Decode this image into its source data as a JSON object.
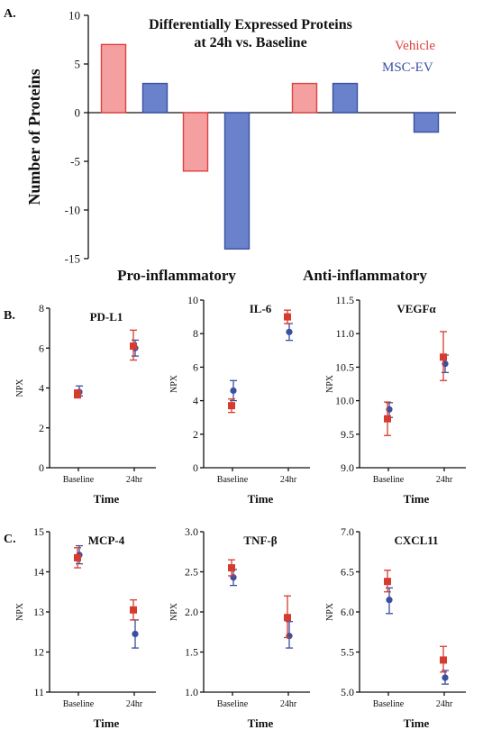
{
  "figure": {
    "panel_labels": [
      "A.",
      "B.",
      "C."
    ]
  },
  "chart_data": [
    {
      "type": "bar",
      "panel": "A.",
      "title": [
        "Differentially Expressed Proteins",
        "at 24h vs. Baseline"
      ],
      "ylabel": "Number of Proteins",
      "ylim": [
        -15,
        10
      ],
      "yticks": [
        10,
        5,
        0,
        -5,
        -10,
        -15
      ],
      "groups": [
        "Pro-inflammatory",
        "Anti-inflammatory"
      ],
      "legend_position": "top-right",
      "series": [
        {
          "name": "Vehicle",
          "color": "#e0403f",
          "fill": "#f4a0a0",
          "values": [
            7,
            -6,
            3
          ]
        },
        {
          "name": "MSC-EV",
          "color": "#3a4fa0",
          "fill": "#6a82cc",
          "values": [
            3,
            -14,
            3,
            -2
          ]
        }
      ],
      "bars": [
        {
          "group": "Pro-inflammatory",
          "series": "Vehicle",
          "value": 7
        },
        {
          "group": "Pro-inflammatory",
          "series": "MSC-EV",
          "value": 3
        },
        {
          "group": "Pro-inflammatory",
          "series": "Vehicle",
          "value": -6
        },
        {
          "group": "Pro-inflammatory",
          "series": "MSC-EV",
          "value": -14
        },
        {
          "group": "Anti-inflammatory",
          "series": "Vehicle",
          "value": 3
        },
        {
          "group": "Anti-inflammatory",
          "series": "MSC-EV",
          "value": 3
        },
        {
          "group": "Anti-inflammatory",
          "series": "MSC-EV",
          "value": -2
        }
      ]
    },
    {
      "type": "scatter",
      "panel": "B.",
      "title": "PD-L1",
      "xlabel": "Time",
      "ylabel": "NPX",
      "categories": [
        "Baseline",
        "24hr"
      ],
      "ylim": [
        0,
        8
      ],
      "yticks": [
        "0",
        "2",
        "4",
        "6",
        "8"
      ],
      "series": [
        {
          "name": "Vehicle",
          "color": "#d63b2f",
          "marker": "square",
          "values": [
            3.7,
            6.1
          ],
          "err_low": [
            3.5,
            5.4
          ],
          "err_high": [
            3.9,
            6.9
          ]
        },
        {
          "name": "MSC-EV",
          "color": "#3a4fa0",
          "marker": "circle",
          "values": [
            3.8,
            6.0
          ],
          "err_low": [
            3.6,
            5.6
          ],
          "err_high": [
            4.1,
            6.4
          ]
        }
      ]
    },
    {
      "type": "scatter",
      "panel": "B.",
      "title": "IL-6",
      "xlabel": "Time",
      "ylabel": "NPX",
      "categories": [
        "Baseline",
        "24hr"
      ],
      "ylim": [
        0,
        10
      ],
      "yticks": [
        "0",
        "2",
        "4",
        "6",
        "8",
        "10"
      ],
      "series": [
        {
          "name": "Vehicle",
          "color": "#d63b2f",
          "marker": "square",
          "values": [
            3.7,
            9.0
          ],
          "err_low": [
            3.3,
            8.6
          ],
          "err_high": [
            4.1,
            9.4
          ]
        },
        {
          "name": "MSC-EV",
          "color": "#3a4fa0",
          "marker": "circle",
          "values": [
            4.6,
            8.1
          ],
          "err_low": [
            4.0,
            7.6
          ],
          "err_high": [
            5.2,
            8.6
          ]
        }
      ]
    },
    {
      "type": "scatter",
      "panel": "B.",
      "title": "VEGFα",
      "xlabel": "Time",
      "ylabel": "NPX",
      "categories": [
        "Baseline",
        "24hr"
      ],
      "ylim": [
        9.0,
        11.5
      ],
      "yticks": [
        "9.0",
        "9.5",
        "10.0",
        "10.5",
        "11.0",
        "11.5"
      ],
      "series": [
        {
          "name": "Vehicle",
          "color": "#d63b2f",
          "marker": "square",
          "values": [
            9.73,
            10.65
          ],
          "err_low": [
            9.48,
            10.3
          ],
          "err_high": [
            9.98,
            11.03
          ]
        },
        {
          "name": "MSC-EV",
          "color": "#3a4fa0",
          "marker": "circle",
          "values": [
            9.87,
            10.55
          ],
          "err_low": [
            9.75,
            10.42
          ],
          "err_high": [
            9.97,
            10.68
          ]
        }
      ]
    },
    {
      "type": "scatter",
      "panel": "C.",
      "title": "MCP-4",
      "xlabel": "Time",
      "ylabel": "NPX",
      "categories": [
        "Baseline",
        "24hr"
      ],
      "ylim": [
        11,
        15
      ],
      "yticks": [
        "11",
        "12",
        "13",
        "14",
        "15"
      ],
      "series": [
        {
          "name": "Vehicle",
          "color": "#d63b2f",
          "marker": "square",
          "values": [
            14.35,
            13.05
          ],
          "err_low": [
            14.1,
            12.8
          ],
          "err_high": [
            14.6,
            13.3
          ]
        },
        {
          "name": "MSC-EV",
          "color": "#3a4fa0",
          "marker": "circle",
          "values": [
            14.42,
            12.45
          ],
          "err_low": [
            14.2,
            12.1
          ],
          "err_high": [
            14.65,
            12.8
          ]
        }
      ]
    },
    {
      "type": "scatter",
      "panel": "C.",
      "title": "TNF-β",
      "xlabel": "Time",
      "ylabel": "NPX",
      "categories": [
        "Baseline",
        "24hr"
      ],
      "ylim": [
        1.0,
        3.0
      ],
      "yticks": [
        "1.0",
        "1.5",
        "2.0",
        "2.5",
        "3.0"
      ],
      "series": [
        {
          "name": "Vehicle",
          "color": "#d63b2f",
          "marker": "square",
          "values": [
            2.55,
            1.93
          ],
          "err_low": [
            2.45,
            1.68
          ],
          "err_high": [
            2.65,
            2.2
          ]
        },
        {
          "name": "MSC-EV",
          "color": "#3a4fa0",
          "marker": "circle",
          "values": [
            2.43,
            1.7
          ],
          "err_low": [
            2.33,
            1.55
          ],
          "err_high": [
            2.53,
            1.88
          ]
        }
      ]
    },
    {
      "type": "scatter",
      "panel": "C.",
      "title": "CXCL11",
      "xlabel": "Time",
      "ylabel": "NPX",
      "categories": [
        "Baseline",
        "24hr"
      ],
      "ylim": [
        5.0,
        7.0
      ],
      "yticks": [
        "5.0",
        "5.5",
        "6.0",
        "6.5",
        "7.0"
      ],
      "series": [
        {
          "name": "Vehicle",
          "color": "#d63b2f",
          "marker": "square",
          "values": [
            6.38,
            5.4
          ],
          "err_low": [
            6.25,
            5.25
          ],
          "err_high": [
            6.52,
            5.57
          ]
        },
        {
          "name": "MSC-EV",
          "color": "#3a4fa0",
          "marker": "circle",
          "values": [
            6.15,
            5.18
          ],
          "err_low": [
            5.98,
            5.1
          ],
          "err_high": [
            6.3,
            5.27
          ]
        }
      ]
    }
  ]
}
